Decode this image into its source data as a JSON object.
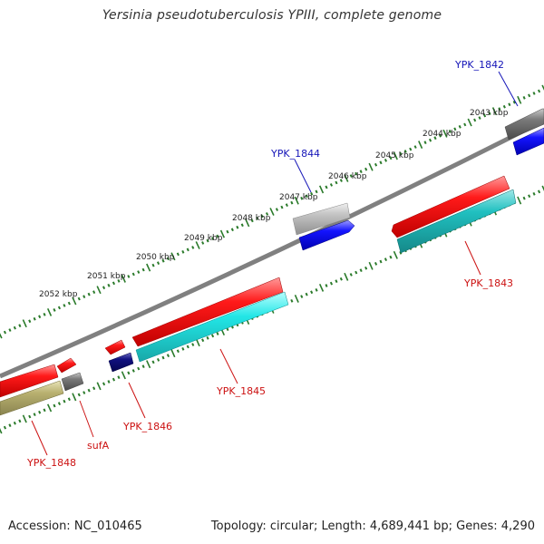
{
  "title": "Yersinia pseudotuberculosis YPIII, complete genome",
  "accession": "Accession: NC_010465",
  "summary": "Topology: circular; Length: 4,689,441 bp; Genes: 4,290",
  "kbp_labels": [
    "2043 kbp",
    "2044 kbp",
    "2045 kbp",
    "2046 kbp",
    "2047 kbp",
    "2048 kbp",
    "2049 kbp",
    "2050 kbp",
    "2051 kbp",
    "2052 kbp"
  ],
  "genes": {
    "ypk_1842": "YPK_1842",
    "ypk_1843": "YPK_1843",
    "ypk_1844": "YPK_1844",
    "ypk_1845": "YPK_1845",
    "ypk_1846": "YPK_1846",
    "ypk_1848": "YPK_1848",
    "sufa": "sufA"
  },
  "colors": {
    "backbone": "#808080",
    "tick": "#2a7a2a",
    "forward_label": "#1515b8",
    "reverse_label": "#cc1111",
    "red_feature": "#ff1010",
    "cyan_feature": "#20e8e8",
    "blue_feature": "#1010ff",
    "navy_feature": "#0b0b80",
    "grey_feature": "#808080",
    "lightgrey_feature": "#c0c0c0",
    "olive_feature": "#b8b070"
  }
}
